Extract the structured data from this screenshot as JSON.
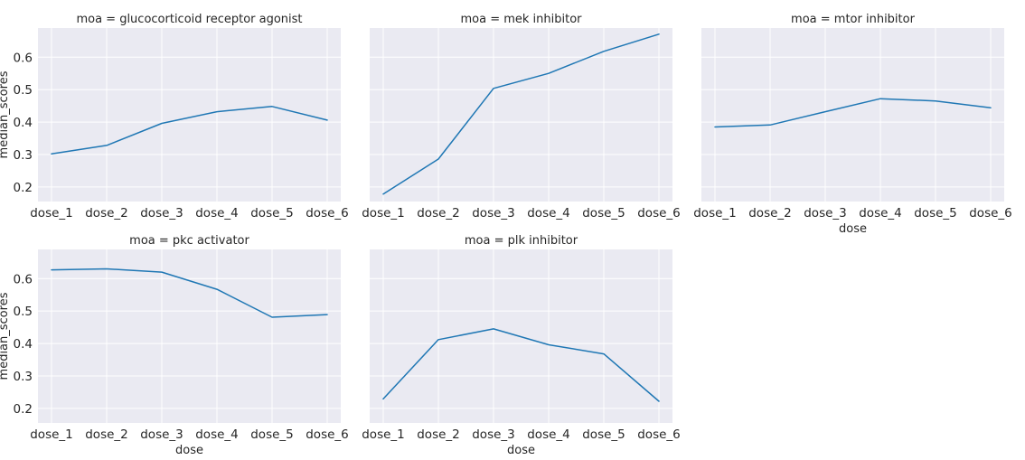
{
  "chart_data": {
    "type": "line",
    "layout": "facet-grid",
    "col_wrap": 3,
    "x_categories": [
      "dose_1",
      "dose_2",
      "dose_3",
      "dose_4",
      "dose_5",
      "dose_6"
    ],
    "y_ticks": [
      0.2,
      0.3,
      0.4,
      0.5,
      0.6
    ],
    "y_tick_labels": [
      "0.2",
      "0.3",
      "0.4",
      "0.5",
      "0.6"
    ],
    "ylim": [
      0.155,
      0.69
    ],
    "xlabel": "dose",
    "ylabel": "median_scores",
    "grid": true,
    "sharey": true,
    "line_color": "#1f77b4",
    "plot_background": "#eaeaf2",
    "panels": [
      {
        "title": "moa = glucocorticoid receptor agonist",
        "values": [
          0.302,
          0.328,
          0.396,
          0.432,
          0.448,
          0.406
        ]
      },
      {
        "title": "moa = mek inhibitor",
        "values": [
          0.178,
          0.286,
          0.504,
          0.55,
          0.618,
          0.671
        ]
      },
      {
        "title": "moa = mtor inhibitor",
        "values": [
          0.385,
          0.391,
          0.432,
          0.472,
          0.465,
          0.444
        ]
      },
      {
        "title": "moa = pkc activator",
        "values": [
          0.627,
          0.63,
          0.62,
          0.567,
          0.481,
          0.489
        ]
      },
      {
        "title": "moa = plk inhibitor",
        "values": [
          0.229,
          0.412,
          0.445,
          0.396,
          0.368,
          0.222
        ]
      }
    ]
  }
}
